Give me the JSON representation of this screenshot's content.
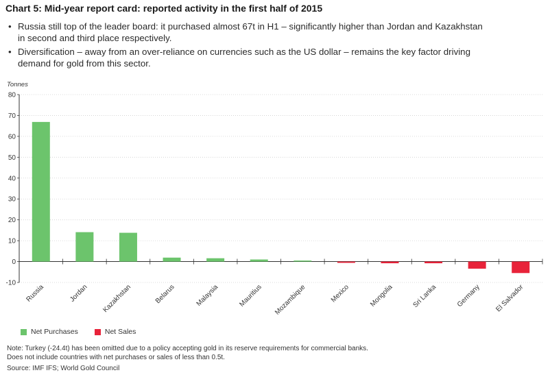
{
  "title": "Chart 5: Mid-year report card: reported activity in the first half of 2015",
  "bullets": [
    "Russia still top of the leader board: it purchased almost 67t in H1 – significantly higher than Jordan and Kazakhstan in second and third place respectively.",
    "Diversification – away from an over-reliance on currencies such as the US dollar – remains the key factor driving demand for gold from this sector."
  ],
  "legend": {
    "purchases": "Net Purchases",
    "sales": "Net Sales"
  },
  "notes": {
    "line1": "Note: Turkey (-24.4t) has been omitted due to a policy accepting gold in its reserve requirements for commercial banks.",
    "line2": "Does not include countries with net purchases or sales of less than 0.5t.",
    "source": "Source: IMF IFS; World Gold Council"
  },
  "colors": {
    "purchases": "#6cc46c",
    "sales": "#e8233a",
    "axis": "#333333",
    "grid": "#cfcfcf"
  },
  "chart_data": {
    "type": "bar",
    "title": "Chart 5: Mid-year report card: reported activity in the first half of 2015",
    "ylabel": "Tonnes",
    "xlabel": "",
    "ylim": [
      -10,
      80
    ],
    "yticks": [
      -10,
      0,
      10,
      20,
      30,
      40,
      50,
      60,
      70,
      80
    ],
    "categories": [
      "Russia",
      "Jordan",
      "Kazakhstan",
      "Belarus",
      "Malaysia",
      "Mauritius",
      "Mozambique",
      "Mexico",
      "Mongolia",
      "Sri Lanka",
      "Germany",
      "El Salvador"
    ],
    "values": [
      66.9,
      14.1,
      13.8,
      1.9,
      1.6,
      1.0,
      0.5,
      -0.6,
      -0.8,
      -0.8,
      -3.4,
      -5.5
    ],
    "series": [
      {
        "name": "Net Purchases",
        "color": "#6cc46c"
      },
      {
        "name": "Net Sales",
        "color": "#e8233a"
      }
    ]
  }
}
